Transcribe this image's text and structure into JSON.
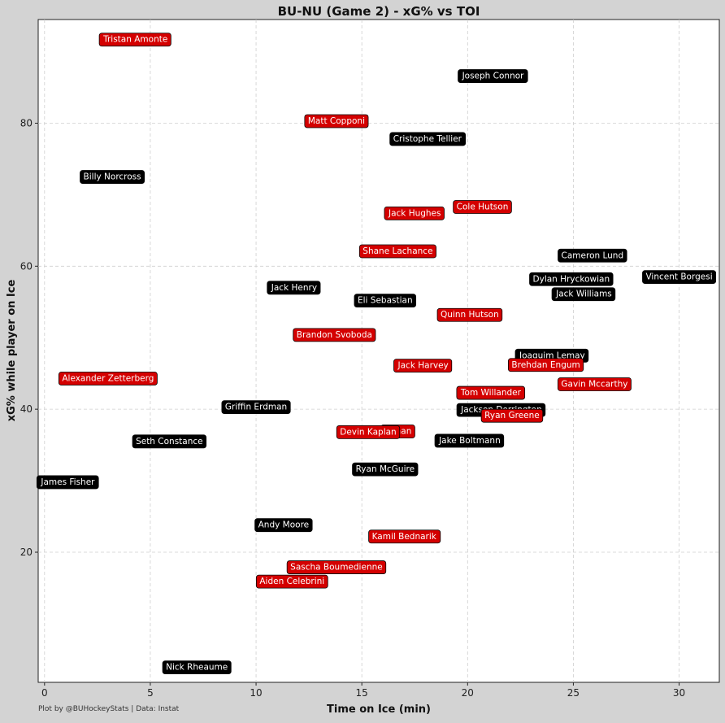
{
  "chart_data": {
    "type": "scatter",
    "title": "BU-NU (Game 2) - xG% vs TOI",
    "xlabel": "Time on Ice (min)",
    "ylabel": "xG% while player on Ice",
    "xlim": [
      -0.3,
      31.9
    ],
    "ylim": [
      1.8,
      94.5
    ],
    "xticks": [
      0,
      5,
      10,
      15,
      20,
      25,
      30
    ],
    "yticks": [
      20,
      40,
      60,
      80
    ],
    "grid": true,
    "legend": "none",
    "colors": {
      "team_a": "#d40000",
      "team_b": "#000000",
      "background": "#d3d3d3",
      "plot_bg": "#ffffff"
    },
    "points": [
      {
        "name": "Tristan Amonte",
        "team": "team_a",
        "x": 4.3,
        "y": 91.8
      },
      {
        "name": "Joseph Connor",
        "team": "team_b",
        "x": 21.2,
        "y": 86.7
      },
      {
        "name": "Matt Copponi",
        "team": "team_a",
        "x": 13.8,
        "y": 80.4
      },
      {
        "name": "Cristophe Tellier",
        "team": "team_b",
        "x": 18.1,
        "y": 77.9
      },
      {
        "name": "Billy Norcross",
        "team": "team_b",
        "x": 3.2,
        "y": 72.6
      },
      {
        "name": "Cole Hutson",
        "team": "team_a",
        "x": 20.7,
        "y": 68.4
      },
      {
        "name": "Jack Hughes",
        "team": "team_a",
        "x": 17.5,
        "y": 67.5
      },
      {
        "name": "Shane Lachance",
        "team": "team_a",
        "x": 16.7,
        "y": 62.2
      },
      {
        "name": "Cameron Lund",
        "team": "team_b",
        "x": 25.9,
        "y": 61.6
      },
      {
        "name": "Vincent Borgesi",
        "team": "team_b",
        "x": 30.0,
        "y": 58.6
      },
      {
        "name": "Dylan Hryckowian",
        "team": "team_b",
        "x": 24.9,
        "y": 58.3
      },
      {
        "name": "Jack Henry",
        "team": "team_b",
        "x": 11.8,
        "y": 57.1
      },
      {
        "name": "Jack Williams",
        "team": "team_b",
        "x": 25.5,
        "y": 56.2
      },
      {
        "name": "Eli Sebastian",
        "team": "team_b",
        "x": 16.1,
        "y": 55.3
      },
      {
        "name": "Quinn Hutson",
        "team": "team_a",
        "x": 20.1,
        "y": 53.3
      },
      {
        "name": "Brandon Svoboda",
        "team": "team_a",
        "x": 13.7,
        "y": 50.5
      },
      {
        "name": "Joaquim Lemay",
        "team": "team_b",
        "x": 24.0,
        "y": 47.6
      },
      {
        "name": "Brehdan Engum",
        "team": "team_a",
        "x": 23.7,
        "y": 46.3
      },
      {
        "name": "Jack Harvey",
        "team": "team_a",
        "x": 17.9,
        "y": 46.2
      },
      {
        "name": "Alexander Zetterberg",
        "team": "team_a",
        "x": 3.0,
        "y": 44.4
      },
      {
        "name": "Gavin Mccarthy",
        "team": "team_a",
        "x": 26.0,
        "y": 43.6
      },
      {
        "name": "Tom Willander",
        "team": "team_a",
        "x": 21.1,
        "y": 42.4
      },
      {
        "name": "Griffin Erdman",
        "team": "team_b",
        "x": 10.0,
        "y": 40.4
      },
      {
        "name": "Jackson Dorrington",
        "team": "team_b",
        "x": 21.6,
        "y": 40.0
      },
      {
        "name": "Ryan Greene",
        "team": "team_a",
        "x": 22.1,
        "y": 39.2
      },
      {
        "name": "Ryan Ufko",
        "team": "team_a",
        "x": 16.7,
        "y": 37.0
      },
      {
        "name": "Devin Kaplan",
        "team": "team_a",
        "x": 15.3,
        "y": 36.9
      },
      {
        "name": "Jake Boltmann",
        "team": "team_b",
        "x": 20.1,
        "y": 35.7
      },
      {
        "name": "Seth Constance",
        "team": "team_b",
        "x": 5.9,
        "y": 35.6
      },
      {
        "name": "Ryan McGuire",
        "team": "team_b",
        "x": 16.1,
        "y": 31.7
      },
      {
        "name": "James Fisher",
        "team": "team_b",
        "x": 1.1,
        "y": 29.9
      },
      {
        "name": "Andy Moore",
        "team": "team_b",
        "x": 11.3,
        "y": 23.9
      },
      {
        "name": "Kamil Bednarik",
        "team": "team_a",
        "x": 17.0,
        "y": 22.3
      },
      {
        "name": "Sascha Boumedienne",
        "team": "team_a",
        "x": 13.8,
        "y": 18.0
      },
      {
        "name": "Aiden Celebrini",
        "team": "team_a",
        "x": 11.7,
        "y": 16.0
      },
      {
        "name": "Nick Rheaume",
        "team": "team_b",
        "x": 7.2,
        "y": 4.0
      }
    ],
    "visible_labels": {
      "Ryan Ufko": "erman"
    },
    "credit": "Plot by @BUHockeyStats | Data: Instat"
  }
}
